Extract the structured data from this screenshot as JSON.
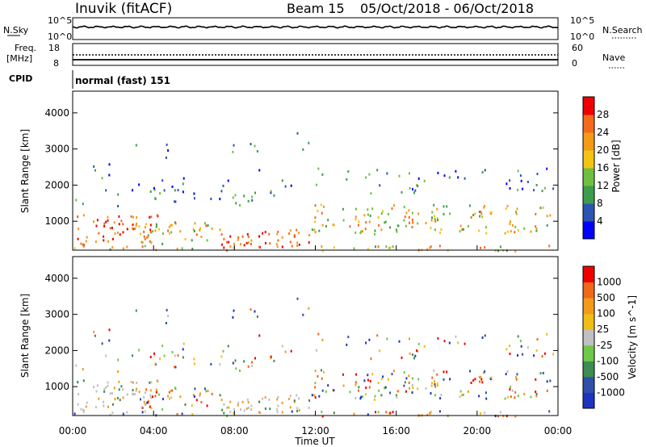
{
  "header": {
    "station": "Inuvik (fitACF)",
    "beam": "Beam 15",
    "dates": "05/Oct/2018 - 06/Oct/2018"
  },
  "top_panels": {
    "nsky": {
      "label": "N.Sky",
      "ticks_left": [
        "10^5",
        "10^0"
      ],
      "ticks_right": [
        "10^5",
        "10^0"
      ],
      "right_label": "N.Search"
    },
    "freq": {
      "label_line1": "Freq.",
      "label_line2": "[MHz]",
      "ticks_left": [
        "18",
        "8"
      ],
      "ticks_right": [
        "60",
        "0"
      ],
      "right_label": "Nave"
    },
    "cpid": {
      "label": "CPID",
      "value": "normal (fast) 151"
    }
  },
  "chart_data": [
    {
      "type": "heatmap",
      "quantity": "power",
      "ylabel": "Slant Range [km]",
      "ylim": [
        200,
        4600
      ],
      "yticks": [
        "4000",
        "3000",
        "2000",
        "1000"
      ],
      "xlim": [
        0,
        24
      ],
      "colorbar": {
        "label": "Power [dB]",
        "ticks": [
          "28",
          "24",
          "20",
          "16",
          "12",
          "8",
          "4"
        ],
        "colors": [
          "#0000ff",
          "#2b55b0",
          "#3d9d4d",
          "#6fc040",
          "#f2c414",
          "#f49a16",
          "#f36a1c",
          "#ef0000"
        ]
      }
    },
    {
      "type": "heatmap",
      "quantity": "velocity",
      "ylabel": "Slant Range [km]",
      "ylim": [
        200,
        4600
      ],
      "yticks": [
        "4000",
        "3000",
        "2000",
        "1000"
      ],
      "xlim": [
        0,
        24
      ],
      "xlabel": "Time UT",
      "xticks": [
        "00:00",
        "04:00",
        "08:00",
        "12:00",
        "16:00",
        "20:00",
        "00:00"
      ],
      "colorbar": {
        "label": "Velocity [m s^-1]",
        "ticks": [
          "1000",
          "500",
          "100",
          "25",
          "-25",
          "-100",
          "-500",
          "-1000"
        ],
        "colors": [
          "#2032c0",
          "#3050a8",
          "#3d8c50",
          "#70c84a",
          "#c0c0c0",
          "#f0bc18",
          "#f39a18",
          "#f06818",
          "#ef0000"
        ]
      }
    }
  ]
}
